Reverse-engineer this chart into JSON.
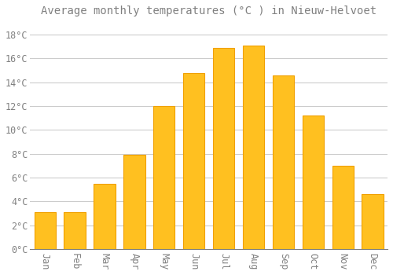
{
  "title": "Average monthly temperatures (°C ) in Nieuw-Helvoet",
  "months": [
    "Jan",
    "Feb",
    "Mar",
    "Apr",
    "May",
    "Jun",
    "Jul",
    "Aug",
    "Sep",
    "Oct",
    "Nov",
    "Dec"
  ],
  "values": [
    3.1,
    3.1,
    5.5,
    7.9,
    12.0,
    14.8,
    16.9,
    17.1,
    14.6,
    11.2,
    7.0,
    4.6
  ],
  "bar_color_main": "#FFC020",
  "bar_color_edge": "#F0A000",
  "background_color": "#FFFFFF",
  "grid_color": "#CCCCCC",
  "text_color": "#808080",
  "ylim": [
    0,
    19
  ],
  "yticks": [
    0,
    2,
    4,
    6,
    8,
    10,
    12,
    14,
    16,
    18
  ],
  "title_fontsize": 10,
  "tick_fontsize": 8.5,
  "bar_width": 0.72
}
